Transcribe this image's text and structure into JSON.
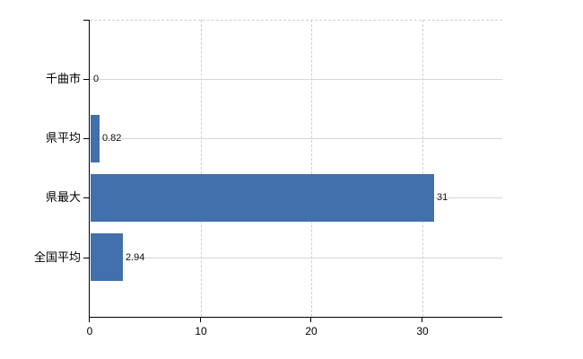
{
  "chart_data": {
    "type": "bar",
    "orientation": "horizontal",
    "title": "",
    "categories": [
      "千曲市",
      "県平均",
      "県最大",
      "全国平均"
    ],
    "values": [
      0,
      0.82,
      31,
      2.94
    ],
    "value_labels": [
      "0",
      "0.82",
      "31",
      "2.94"
    ],
    "x_ticks": [
      0,
      10,
      20,
      30
    ],
    "x_tick_labels": [
      "0",
      "10",
      "20",
      "30"
    ],
    "xlim": [
      0,
      37.2
    ],
    "grid": true,
    "legend": false,
    "colors": {
      "bar": "#4170ac",
      "axis": "#000000",
      "grid_solid": "#d5d9d2",
      "grid_dashed": "#d3cdd4",
      "text": "#000000",
      "background": "#ffffff"
    }
  }
}
